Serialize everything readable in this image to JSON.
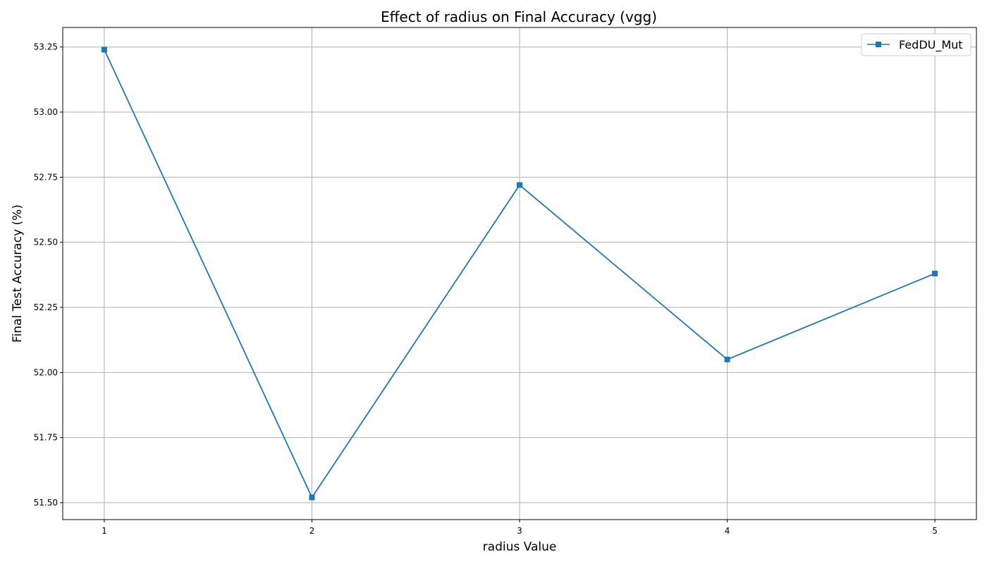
{
  "chart_data": {
    "type": "line",
    "title": "Effect of radius on Final Accuracy (vgg)",
    "xlabel": "radius Value",
    "ylabel": "Final Test Accuracy (%)",
    "x": [
      1,
      2,
      3,
      4,
      5
    ],
    "x_tick_labels": [
      "1",
      "2",
      "3",
      "4",
      "5"
    ],
    "xlim": [
      0.8,
      5.2
    ],
    "ylim": [
      51.435,
      53.325
    ],
    "y_ticks": [
      51.5,
      51.75,
      52.0,
      52.25,
      52.5,
      52.75,
      53.0,
      53.25
    ],
    "y_tick_labels": [
      "51.50",
      "51.75",
      "52.00",
      "52.25",
      "52.50",
      "52.75",
      "53.00",
      "53.25"
    ],
    "grid": true,
    "legend_position": "top-right",
    "series": [
      {
        "name": "FedDU_Mut",
        "marker": "square",
        "color": "#1f77b4",
        "values": [
          53.24,
          51.52,
          52.72,
          52.05,
          52.38
        ]
      }
    ]
  }
}
